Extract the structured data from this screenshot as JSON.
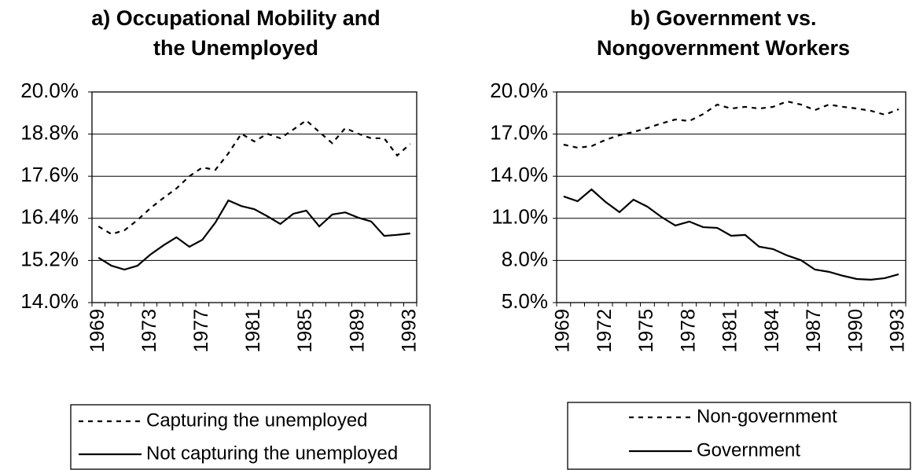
{
  "chart_data": [
    {
      "type": "line",
      "title": "a) Occupational Mobility and the Unemployed",
      "categories": [
        "1969",
        null,
        null,
        null,
        "1973",
        null,
        null,
        null,
        "1977",
        null,
        null,
        null,
        "1981",
        null,
        null,
        null,
        "1985",
        null,
        null,
        null,
        "1989",
        null,
        null,
        null,
        "1993"
      ],
      "series": [
        {
          "name": "Capturing the unemployed",
          "color": "#000000",
          "style": "dotted",
          "values": [
            16.17,
            15.95,
            16.06,
            16.35,
            16.69,
            16.98,
            17.25,
            17.6,
            17.85,
            17.78,
            18.25,
            18.81,
            18.59,
            18.81,
            18.68,
            18.93,
            19.19,
            18.86,
            18.54,
            18.97,
            18.81,
            18.68,
            18.68,
            18.19,
            18.52
          ]
        },
        {
          "name": "Not capturing the unemployed",
          "color": "#000000",
          "style": "solid",
          "values": [
            15.28,
            15.05,
            14.94,
            15.05,
            15.37,
            15.63,
            15.86,
            15.59,
            15.79,
            16.28,
            16.91,
            16.75,
            16.66,
            16.46,
            16.24,
            16.53,
            16.62,
            16.17,
            16.51,
            16.57,
            16.42,
            16.31,
            15.9,
            15.93,
            15.97
          ]
        }
      ],
      "ylim": [
        14,
        20
      ],
      "yticks": [
        {
          "value": 14,
          "label": "14.0%"
        },
        {
          "value": 15.2,
          "label": "15.2%"
        },
        {
          "value": 16.4,
          "label": "16.4%"
        },
        {
          "value": 17.6,
          "label": "17.6%"
        },
        {
          "value": 18.8,
          "label": "18.8%"
        },
        {
          "value": 20,
          "label": "20.0%"
        }
      ],
      "grid": true,
      "legend": "bottom"
    },
    {
      "type": "line",
      "title": "b) Government vs. Nongovernment Workers",
      "categories": [
        "1969",
        null,
        null,
        "1972",
        null,
        null,
        "1975",
        null,
        null,
        "1978",
        null,
        null,
        "1981",
        null,
        null,
        "1984",
        null,
        null,
        "1987",
        null,
        null,
        "1990",
        null,
        null,
        "1993"
      ],
      "series": [
        {
          "name": "Non-government",
          "color": "#000000",
          "style": "dotted",
          "values": [
            16.25,
            16.03,
            16.14,
            16.59,
            16.92,
            17.15,
            17.43,
            17.76,
            18.04,
            17.93,
            18.43,
            19.1,
            18.82,
            18.94,
            18.82,
            18.94,
            19.33,
            19.1,
            18.71,
            19.1,
            18.94,
            18.82,
            18.66,
            18.38,
            18.77
          ]
        },
        {
          "name": "Government",
          "color": "#000000",
          "style": "solid",
          "values": [
            12.56,
            12.22,
            13.06,
            12.17,
            11.44,
            12.33,
            11.83,
            11.1,
            10.49,
            10.77,
            10.37,
            10.32,
            9.76,
            9.82,
            8.98,
            8.81,
            8.36,
            8.02,
            7.35,
            7.19,
            6.91,
            6.68,
            6.63,
            6.74,
            7.02
          ]
        }
      ],
      "ylim": [
        5,
        20
      ],
      "yticks": [
        {
          "value": 5,
          "label": "5.0%"
        },
        {
          "value": 8,
          "label": "8.0%"
        },
        {
          "value": 11,
          "label": "11.0%"
        },
        {
          "value": 14,
          "label": "14.0%"
        },
        {
          "value": 17,
          "label": "17.0%"
        },
        {
          "value": 20,
          "label": "20.0%"
        }
      ],
      "grid": true,
      "legend": "bottom"
    }
  ]
}
